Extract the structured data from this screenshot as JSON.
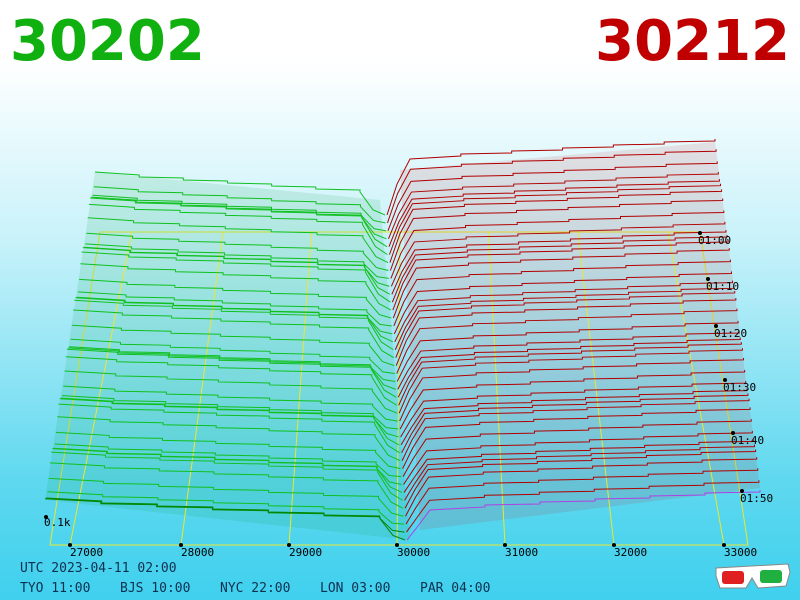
{
  "header": {
    "bid": "30202",
    "ask": "30212"
  },
  "price_axis": {
    "labels": [
      "27000",
      "28000",
      "29000",
      "30000",
      "31000",
      "32000",
      "33000"
    ]
  },
  "time_axis": {
    "labels": [
      "01:00",
      "01:10",
      "01:20",
      "01:30",
      "01:40",
      "01:50"
    ]
  },
  "depth_label": "0.1k",
  "footer": {
    "utc": "UTC 2023-04-11 02:00",
    "zones": [
      "TYO 11:00",
      "BJS 10:00",
      "NYC 22:00",
      "LON 03:00",
      "PAR 04:00"
    ]
  }
}
